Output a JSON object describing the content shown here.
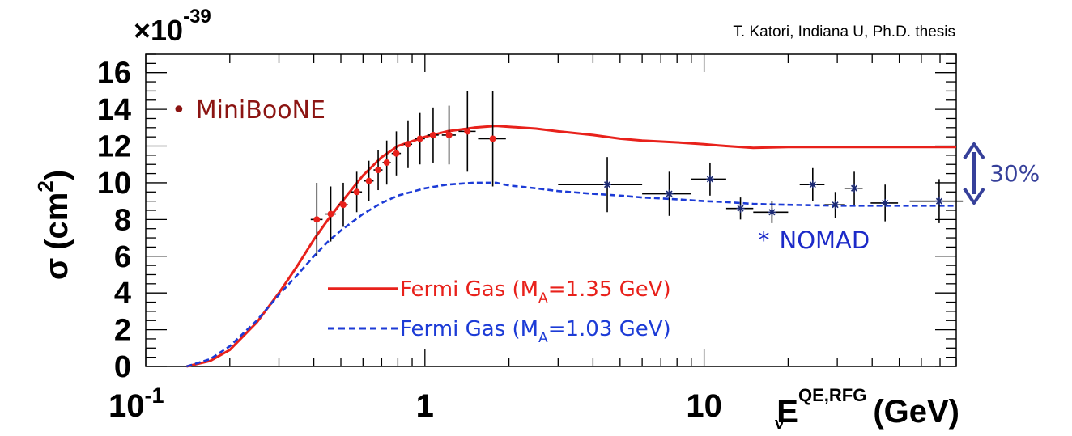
{
  "chart_data": {
    "type": "line",
    "credit": "T. Katori, Indiana U, Ph.D. thesis",
    "ylabel": "σ (cm²)",
    "ylabel_parts": {
      "sigma": "σ",
      "unit_open": "(cm",
      "unit_exp": "2",
      "unit_close": ")"
    },
    "multiplier": {
      "prefix": "×10",
      "exponent": "-39"
    },
    "xlabel_parts": {
      "e": "E",
      "sub": "ν",
      "sup": "QE,RFG",
      "unit": "(GeV)"
    },
    "x_scale": "log",
    "xlim": [
      0.1,
      80
    ],
    "ylim": [
      0,
      17
    ],
    "x_ticks": [
      {
        "value": 0.1,
        "base": "10",
        "exp": "-1"
      },
      {
        "value": 1,
        "label": "1"
      },
      {
        "value": 10,
        "label": "10"
      }
    ],
    "y_ticks": [
      0,
      2,
      4,
      6,
      8,
      10,
      12,
      14,
      16
    ],
    "series": [
      {
        "name": "Fermi Gas (MA=1.35 GeV)",
        "legend_text": {
          "pre": "Fermi Gas (M",
          "sub": "A",
          "post": "=1.35 GeV)"
        },
        "color": "#e8211b",
        "style": "solid",
        "x": [
          0.14,
          0.17,
          0.2,
          0.25,
          0.3,
          0.35,
          0.4,
          0.45,
          0.5,
          0.6,
          0.7,
          0.8,
          1.0,
          1.2,
          1.5,
          1.8,
          2.0,
          2.5,
          3.0,
          4.0,
          5.0,
          6.0,
          8.0,
          10.0,
          12.0,
          15.0,
          20.0,
          30.0,
          50.0,
          80.0
        ],
        "y": [
          0.0,
          0.3,
          0.9,
          2.4,
          4.0,
          5.5,
          6.9,
          8.0,
          8.9,
          10.4,
          11.4,
          12.0,
          12.5,
          12.8,
          13.0,
          13.1,
          13.05,
          12.95,
          12.8,
          12.6,
          12.4,
          12.3,
          12.2,
          12.1,
          12.0,
          11.9,
          11.95,
          11.95,
          11.95,
          11.95
        ]
      },
      {
        "name": "Fermi Gas (MA=1.03 GeV)",
        "legend_text": {
          "pre": "Fermi Gas (M",
          "sub": "A",
          "post": "=1.03 GeV)"
        },
        "color": "#1c3bd6",
        "style": "dashed",
        "x": [
          0.14,
          0.17,
          0.2,
          0.25,
          0.3,
          0.35,
          0.4,
          0.45,
          0.5,
          0.6,
          0.7,
          0.8,
          1.0,
          1.2,
          1.5,
          1.8,
          2.0,
          2.5,
          3.0,
          4.0,
          5.0,
          6.0,
          8.0,
          10.0,
          12.0,
          15.0,
          20.0,
          30.0,
          50.0,
          80.0
        ],
        "y": [
          0.0,
          0.4,
          1.1,
          2.5,
          3.9,
          5.0,
          6.0,
          6.8,
          7.4,
          8.3,
          8.9,
          9.3,
          9.7,
          9.9,
          10.0,
          10.0,
          9.85,
          9.7,
          9.55,
          9.4,
          9.3,
          9.2,
          9.1,
          9.0,
          8.95,
          8.85,
          8.8,
          8.75,
          8.75,
          8.75
        ]
      },
      {
        "name": "MiniBooNE",
        "type": "errorbar",
        "color": "#e8211b",
        "marker": "circle",
        "points": [
          {
            "x": 0.41,
            "y": 8.0,
            "yerr": 2.0,
            "xerr": 0.02
          },
          {
            "x": 0.46,
            "y": 8.3,
            "yerr": 1.5,
            "xerr": 0.02
          },
          {
            "x": 0.51,
            "y": 8.8,
            "yerr": 1.2,
            "xerr": 0.02
          },
          {
            "x": 0.57,
            "y": 9.5,
            "yerr": 1.1,
            "xerr": 0.025
          },
          {
            "x": 0.63,
            "y": 10.1,
            "yerr": 1.1,
            "xerr": 0.025
          },
          {
            "x": 0.68,
            "y": 10.7,
            "yerr": 1.1,
            "xerr": 0.025
          },
          {
            "x": 0.73,
            "y": 11.1,
            "yerr": 1.2,
            "xerr": 0.025
          },
          {
            "x": 0.79,
            "y": 11.6,
            "yerr": 1.2,
            "xerr": 0.03
          },
          {
            "x": 0.87,
            "y": 12.1,
            "yerr": 1.3,
            "xerr": 0.03
          },
          {
            "x": 0.96,
            "y": 12.4,
            "yerr": 1.4,
            "xerr": 0.04
          },
          {
            "x": 1.07,
            "y": 12.6,
            "yerr": 1.5,
            "xerr": 0.05
          },
          {
            "x": 1.22,
            "y": 12.6,
            "yerr": 1.6,
            "xerr": 0.07
          },
          {
            "x": 1.42,
            "y": 12.8,
            "yerr": 2.2,
            "xerr": 0.1
          },
          {
            "x": 1.75,
            "y": 12.4,
            "yerr": 2.6,
            "xerr": 0.2
          }
        ]
      },
      {
        "name": "NOMAD",
        "type": "errorbar",
        "color": "#1c2a73",
        "marker": "star",
        "points": [
          {
            "x": 4.5,
            "y": 9.9,
            "yerr": 1.5,
            "xerr_low": 1.5,
            "xerr_high": 1.5
          },
          {
            "x": 7.5,
            "y": 9.4,
            "yerr": 1.2,
            "xerr_low": 1.5,
            "xerr_high": 1.5
          },
          {
            "x": 10.5,
            "y": 10.2,
            "yerr": 0.9,
            "xerr_low": 1.5,
            "xerr_high": 1.5
          },
          {
            "x": 13.5,
            "y": 8.6,
            "yerr": 0.6,
            "xerr_low": 1.5,
            "xerr_high": 1.5
          },
          {
            "x": 17.5,
            "y": 8.4,
            "yerr": 0.6,
            "xerr_low": 2.5,
            "xerr_high": 2.5
          },
          {
            "x": 24.5,
            "y": 9.9,
            "yerr": 0.9,
            "xerr_low": 2.5,
            "xerr_high": 2.5
          },
          {
            "x": 29.5,
            "y": 8.8,
            "yerr": 0.7,
            "xerr_low": 2.5,
            "xerr_high": 2.5
          },
          {
            "x": 34.5,
            "y": 9.7,
            "yerr": 0.9,
            "xerr_low": 2.5,
            "xerr_high": 2.5
          },
          {
            "x": 44.5,
            "y": 8.9,
            "yerr": 1.0,
            "xerr_low": 5,
            "xerr_high": 5
          },
          {
            "x": 69.5,
            "y": 9.0,
            "yerr": 1.2,
            "xerr_low": 15,
            "xerr_high": 15
          }
        ]
      }
    ],
    "annotations": {
      "miniboone": {
        "bullet": "•",
        "text": "MiniBooNE",
        "color": "#8b1412"
      },
      "nomad": {
        "star": "*",
        "text": "NOMAD",
        "color": "#1c2ac8"
      },
      "percent": {
        "text": "30%",
        "color": "#36409a"
      }
    },
    "colors": {
      "arrow": "#36409a"
    }
  }
}
